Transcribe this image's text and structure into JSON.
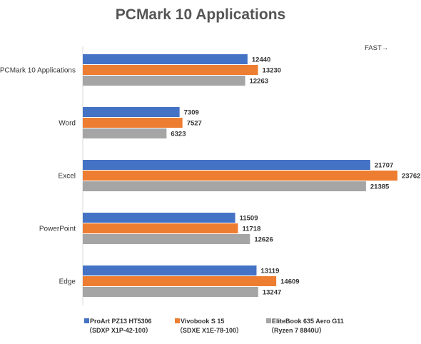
{
  "chart_data": {
    "type": "bar",
    "orientation": "horizontal",
    "title": "PCMark 10 Applications",
    "annotation": "FAST→",
    "categories": [
      "PCMark 10 Applications",
      "Word",
      "Excel",
      "PowerPoint",
      "Edge"
    ],
    "xlim": [
      0,
      25000
    ],
    "grid": false,
    "legend_position": "bottom",
    "series": [
      {
        "name": "ProArt PZ13 HT5306",
        "subname": "（SDXP X1P-42-100）",
        "color": "#4472c4",
        "values": [
          12440,
          7309,
          21707,
          11509,
          13119
        ]
      },
      {
        "name": "Vivobook S 15",
        "subname": "（SDXE X1E-78-100）",
        "color": "#ed7d31",
        "values": [
          13230,
          7527,
          23762,
          11718,
          14609
        ]
      },
      {
        "name": "EliteBook 635 Aero G11",
        "subname": "（Ryzen 7 8840U）",
        "color": "#a5a5a5",
        "values": [
          12263,
          6323,
          21385,
          12626,
          13247
        ]
      }
    ]
  }
}
